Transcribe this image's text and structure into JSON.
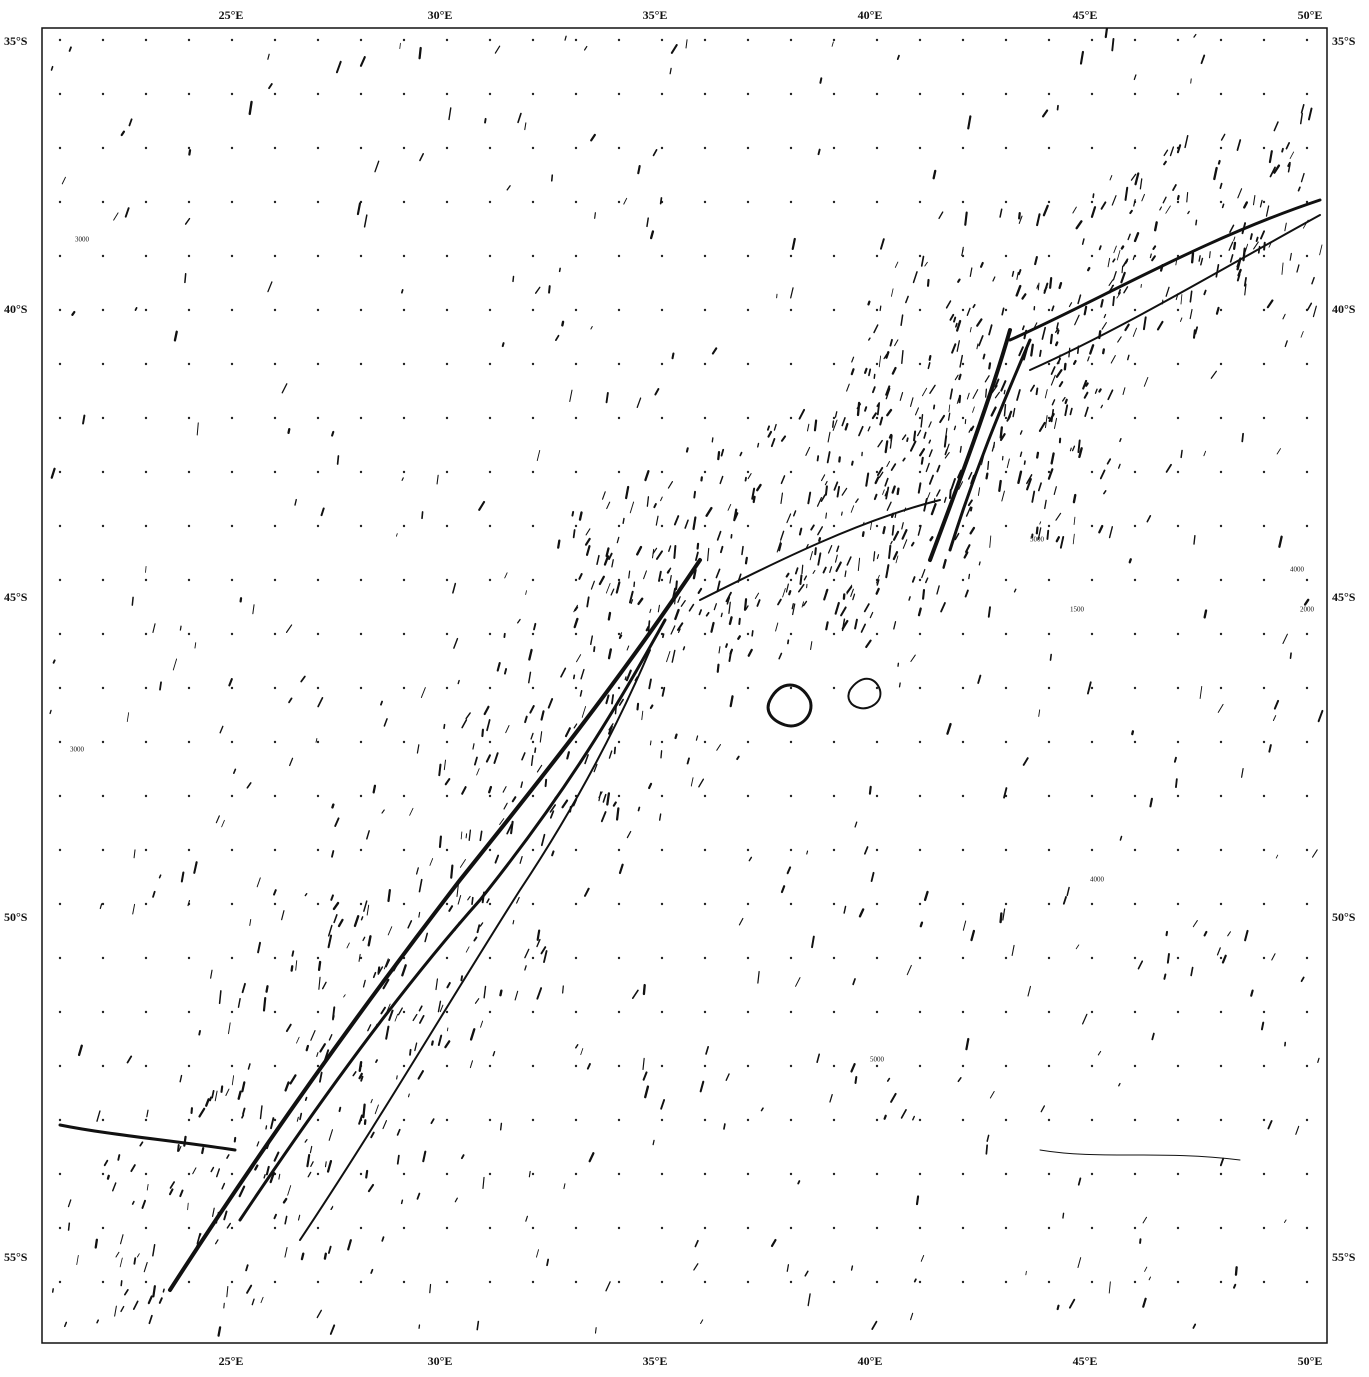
{
  "map": {
    "top_labels": [
      "25°E",
      "30°E",
      "35°E",
      "40°E",
      "45°E",
      "50°E"
    ],
    "bottom_labels": [
      "25°E",
      "30°E",
      "35°E",
      "40°E",
      "45°E",
      "50°E"
    ],
    "left_labels": [
      "35°S",
      "40°S",
      "45°S",
      "50°S",
      "55°S"
    ],
    "right_labels": [
      "35°S",
      "40°S",
      "45°S",
      "50°S",
      "55°S"
    ],
    "depth_labels": [
      "3000",
      "4000",
      "5000",
      "2000",
      "1500",
      "4000",
      "3000",
      "5000"
    ]
  }
}
